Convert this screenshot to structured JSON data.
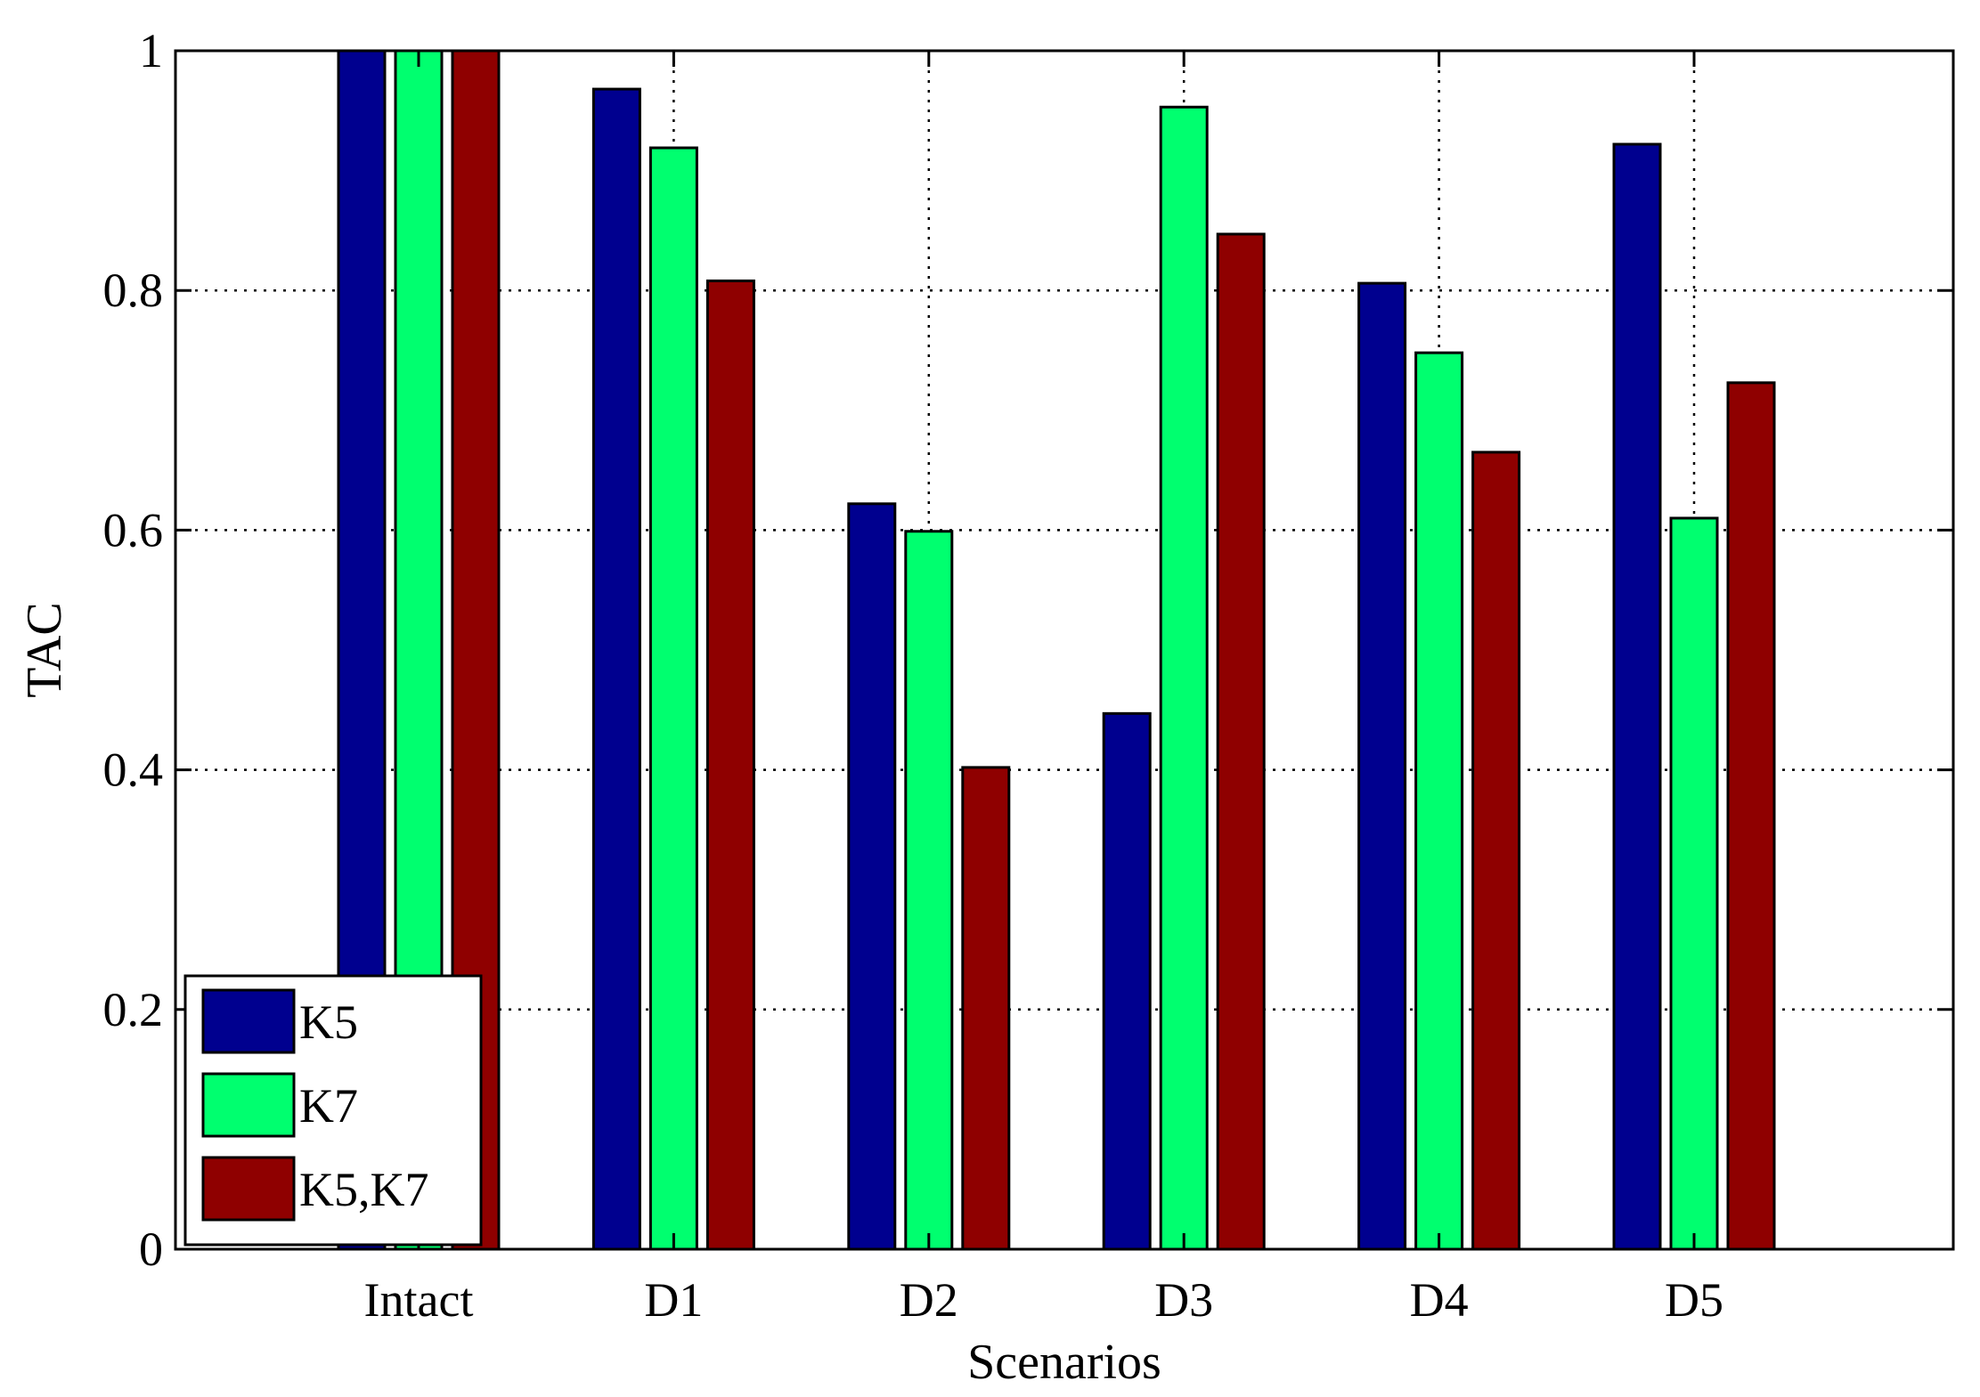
{
  "chart_data": {
    "type": "bar",
    "title": "",
    "xlabel": "Scenarios",
    "ylabel": "TAC",
    "categories": [
      "Intact",
      "D1",
      "D2",
      "D3",
      "D4",
      "D5"
    ],
    "series": [
      {
        "name": "K5",
        "color": "#00008f",
        "values": [
          1.0,
          0.968,
          0.622,
          0.447,
          0.806,
          0.922
        ]
      },
      {
        "name": "K7",
        "color": "#00ff6f",
        "values": [
          1.0,
          0.919,
          0.599,
          0.953,
          0.748,
          0.61
        ]
      },
      {
        "name": "K5,K7",
        "color": "#8f0000",
        "values": [
          1.0,
          0.808,
          0.402,
          0.847,
          0.665,
          0.723
        ]
      }
    ],
    "ylim": [
      0,
      1
    ],
    "yticks": [
      0,
      0.2,
      0.4,
      0.6,
      0.8,
      1
    ],
    "ytick_labels": [
      "0",
      "0.2",
      "0.4",
      "0.6",
      "0.8",
      "1"
    ],
    "grid": true,
    "legend_position": "bottom-left"
  }
}
